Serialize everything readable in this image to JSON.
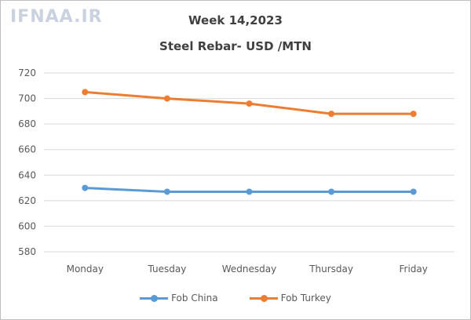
{
  "watermark": "IFNAA.IR",
  "chart_data": {
    "type": "line",
    "title": "Week 14,2023",
    "subtitle": "Steel Rebar- USD /MTN",
    "categories": [
      "Monday",
      "Tuesday",
      "Wednesday",
      "Thursday",
      "Friday"
    ],
    "series": [
      {
        "name": "Fob China",
        "color": "#5b9bd5",
        "values": [
          630,
          627,
          627,
          627,
          627
        ]
      },
      {
        "name": "Fob Turkey",
        "color": "#ed7d31",
        "values": [
          705,
          700,
          696,
          688,
          688
        ]
      }
    ],
    "ylim": [
      580,
      720
    ],
    "yticks": [
      580,
      600,
      620,
      640,
      660,
      680,
      700,
      720
    ],
    "grid": true,
    "legend": "bottom"
  }
}
